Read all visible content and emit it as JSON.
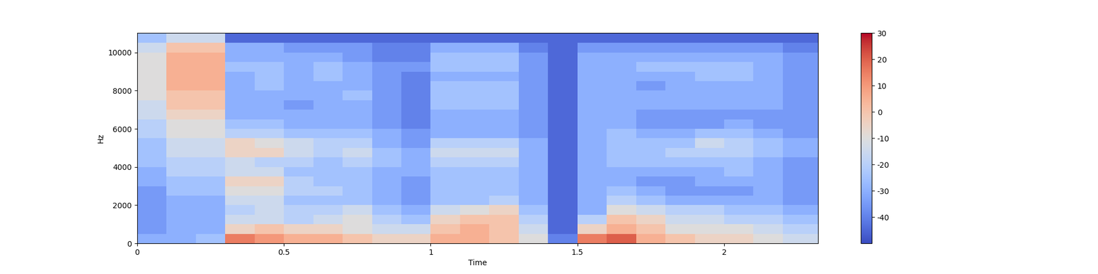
{
  "chart_data": {
    "type": "heatmap",
    "xlabel": "Time",
    "ylabel": "Hz",
    "color": "coolwarm",
    "x_edges": [
      0,
      0.1,
      0.2,
      0.3,
      0.4,
      0.5,
      0.6,
      0.7,
      0.8,
      0.9,
      1.0,
      1.1,
      1.2,
      1.3,
      1.4,
      1.5,
      1.6,
      1.7,
      1.8,
      1.9,
      2.0,
      2.1,
      2.2,
      2.32
    ],
    "y_edges": [
      0,
      500,
      1000,
      1500,
      2000,
      2500,
      3000,
      3500,
      4000,
      4500,
      5000,
      5500,
      6000,
      6500,
      7000,
      7500,
      8000,
      8500,
      9000,
      9500,
      10000,
      10500,
      11025
    ],
    "cells": [
      [
        -30,
        -35,
        -35,
        -35,
        -35,
        -35,
        -30,
        -30,
        -25,
        -25,
        -25,
        -20,
        -20,
        -15,
        -15,
        -10,
        -10,
        -10,
        -10,
        -10,
        -15,
        -25
      ],
      [
        -30,
        -30,
        -30,
        -30,
        -30,
        -25,
        -25,
        -20,
        -20,
        -15,
        -15,
        -10,
        -10,
        -5,
        0,
        0,
        5,
        5,
        5,
        5,
        0,
        -15
      ],
      [
        -25,
        -30,
        -30,
        -30,
        -30,
        -25,
        -25,
        -20,
        -20,
        -15,
        -15,
        -10,
        -10,
        -5,
        0,
        0,
        5,
        5,
        5,
        5,
        0,
        -15
      ],
      [
        15,
        -5,
        -15,
        -20,
        -15,
        -10,
        -5,
        -15,
        -15,
        -5,
        -5,
        -20,
        -25,
        -30,
        -30,
        -30,
        -30,
        -30,
        -25,
        -30,
        -30,
        -45
      ],
      [
        10,
        0,
        -15,
        -15,
        -15,
        -10,
        -5,
        -15,
        -20,
        -5,
        -10,
        -20,
        -25,
        -30,
        -30,
        -30,
        -25,
        -25,
        -25,
        -30,
        -30,
        -45
      ],
      [
        5,
        -5,
        -20,
        -20,
        -25,
        -20,
        -20,
        -25,
        -20,
        -15,
        -15,
        -25,
        -30,
        -30,
        -35,
        -30,
        -30,
        -30,
        -30,
        -30,
        -35,
        -45
      ],
      [
        5,
        -5,
        -15,
        -20,
        -25,
        -20,
        -25,
        -25,
        -25,
        -20,
        -20,
        -25,
        -30,
        -30,
        -30,
        -30,
        -30,
        -25,
        -25,
        -30,
        -35,
        -45
      ],
      [
        0,
        -10,
        -10,
        -15,
        -25,
        -25,
        -25,
        -25,
        -20,
        -15,
        -20,
        -25,
        -30,
        -30,
        -30,
        -25,
        -30,
        -30,
        -30,
        -35,
        -35,
        -45
      ],
      [
        -5,
        -15,
        -20,
        -25,
        -30,
        -30,
        -30,
        -30,
        -25,
        -25,
        -30,
        -30,
        -35,
        -35,
        -35,
        -35,
        -35,
        -35,
        -35,
        -40,
        -40,
        -45
      ],
      [
        -5,
        -15,
        -25,
        -30,
        -35,
        -35,
        -35,
        -30,
        -30,
        -30,
        -35,
        -35,
        -40,
        -40,
        -40,
        -40,
        -40,
        -40,
        -35,
        -40,
        -40,
        -45
      ],
      [
        5,
        0,
        -5,
        -15,
        -25,
        -25,
        -25,
        -25,
        -20,
        -15,
        -20,
        -30,
        -30,
        -30,
        -25,
        -25,
        -25,
        -30,
        -25,
        -25,
        -30,
        -45
      ],
      [
        5,
        5,
        0,
        -10,
        -25,
        -25,
        -25,
        -25,
        -20,
        -15,
        -20,
        -30,
        -30,
        -30,
        -25,
        -25,
        -25,
        -30,
        -25,
        -25,
        -30,
        -45
      ],
      [
        0,
        0,
        0,
        -5,
        -20,
        -25,
        -25,
        -25,
        -20,
        -15,
        -20,
        -30,
        -30,
        -30,
        -25,
        -25,
        -25,
        -30,
        -25,
        -25,
        -30,
        -45
      ],
      [
        -10,
        -15,
        -20,
        -25,
        -30,
        -30,
        -30,
        -30,
        -30,
        -30,
        -30,
        -35,
        -35,
        -35,
        -35,
        -35,
        -35,
        -35,
        -35,
        -35,
        -40,
        -45
      ],
      [
        -40,
        -45,
        -45,
        -45,
        -45,
        -45,
        -45,
        -45,
        -45,
        -45,
        -45,
        -45,
        -45,
        -45,
        -45,
        -45,
        -45,
        -45,
        -45,
        -45,
        -45,
        -45
      ],
      [
        15,
        -5,
        -20,
        -30,
        -30,
        -30,
        -30,
        -30,
        -30,
        -30,
        -30,
        -30,
        -30,
        -30,
        -30,
        -30,
        -30,
        -30,
        -30,
        -30,
        -35,
        -45
      ],
      [
        20,
        5,
        0,
        -10,
        -20,
        -25,
        -30,
        -30,
        -25,
        -25,
        -25,
        -25,
        -30,
        -30,
        -30,
        -30,
        -30,
        -30,
        -30,
        -30,
        -35,
        -45
      ],
      [
        5,
        0,
        -5,
        -15,
        -25,
        -30,
        -35,
        -30,
        -25,
        -25,
        -25,
        -30,
        -35,
        -35,
        -30,
        -30,
        -35,
        -30,
        -25,
        -30,
        -35,
        -45
      ],
      [
        0,
        -10,
        -15,
        -20,
        -30,
        -35,
        -35,
        -30,
        -25,
        -20,
        -25,
        -30,
        -35,
        -35,
        -30,
        -30,
        -30,
        -30,
        -25,
        -30,
        -35,
        -45
      ],
      [
        -5,
        -10,
        -15,
        -20,
        -30,
        -35,
        -30,
        -30,
        -25,
        -20,
        -15,
        -25,
        -35,
        -35,
        -30,
        -30,
        -30,
        -25,
        -25,
        -30,
        -35,
        -45
      ],
      [
        -5,
        -10,
        -20,
        -25,
        -30,
        -35,
        -30,
        -25,
        -25,
        -20,
        -20,
        -25,
        -30,
        -35,
        -30,
        -30,
        -30,
        -25,
        -25,
        -30,
        -35,
        -45
      ],
      [
        -10,
        -15,
        -20,
        -25,
        -30,
        -30,
        -30,
        -30,
        -30,
        -25,
        -25,
        -30,
        -35,
        -35,
        -30,
        -30,
        -30,
        -30,
        -30,
        -30,
        -35,
        -45
      ],
      [
        -15,
        -20,
        -25,
        -30,
        -35,
        -35,
        -35,
        -35,
        -35,
        -30,
        -30,
        -35,
        -35,
        -35,
        -35,
        -35,
        -35,
        -35,
        -35,
        -35,
        -40,
        -45
      ]
    ],
    "xlim": [
      0,
      2.32
    ],
    "xticks": [
      0,
      0.5,
      1,
      1.5,
      2
    ],
    "ylim": [
      0,
      11025
    ],
    "yticks": [
      0,
      2000,
      4000,
      6000,
      8000,
      10000
    ],
    "colorbar": {
      "range": [
        -50,
        30
      ],
      "ticks": [
        -40,
        -30,
        -20,
        -10,
        0,
        10,
        20,
        30
      ]
    }
  }
}
